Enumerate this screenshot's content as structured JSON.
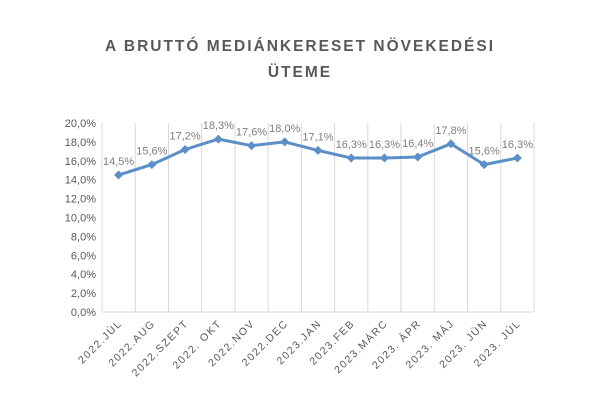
{
  "chart_data": {
    "type": "line",
    "title_lines": [
      "A BRUTTÓ MEDIÁNKERESET NÖVEKEDÉSI",
      "ÜTEME"
    ],
    "categories": [
      "2022.JÚL",
      "2022.AUG",
      "2022.SZEPT",
      "2022. OKT",
      "2022.NOV",
      "2022.DEC",
      "2023.JAN",
      "2023.FEB",
      "2023.MÁRC",
      "2023. ÁPR",
      "2023. MÁJ",
      "2023. JÚN",
      "2023. JÚL"
    ],
    "values": [
      14.5,
      15.6,
      17.2,
      18.3,
      17.6,
      18.0,
      17.1,
      16.3,
      16.3,
      16.4,
      17.8,
      15.6,
      16.3
    ],
    "data_labels": [
      "14,5%",
      "15,6%",
      "17,2%",
      "18,3%",
      "17,6%",
      "18,0%",
      "17,1%",
      "16,3%",
      "16,3%",
      "16,4%",
      "17,8%",
      "15,6%",
      "16,3%"
    ],
    "ylim": [
      0,
      20
    ],
    "y_ticks": [
      "0,0%",
      "2,0%",
      "4,0%",
      "6,0%",
      "8,0%",
      "10,0%",
      "12,0%",
      "14,0%",
      "16,0%",
      "18,0%",
      "20,0%"
    ],
    "grid": "vertical",
    "legend": "none",
    "colors": {
      "line": "#5b8fc7",
      "marker": "#5b8fc7",
      "grid": "#d9d9d9"
    }
  }
}
